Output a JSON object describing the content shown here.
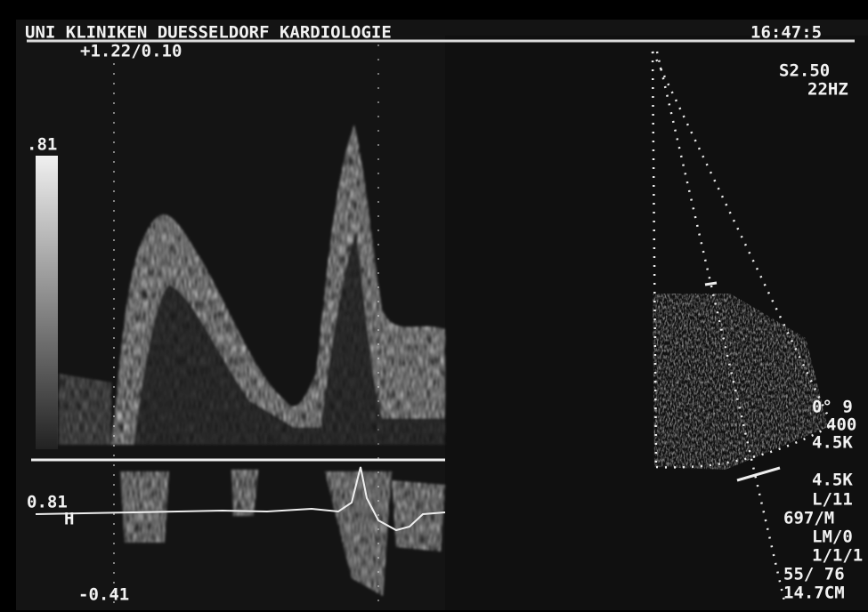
{
  "header": {
    "title": "UNI KLINIKEN DUESSELDORF KARDIOLOGIE",
    "time": "16:47:5"
  },
  "doppler": {
    "scale": "+1.22/0.10",
    "top_label": ".81",
    "ecg_label": "0.81",
    "ecg_marker": "H",
    "bottom_label": "-0.41"
  },
  "settings": {
    "depth": "S2.50",
    "frame_rate": "22HZ",
    "lines": [
      "0° 9",
      "400",
      "4.5K",
      "4.5K",
      "L/11",
      "697/M",
      "LM/0",
      "1/1/1",
      "55/ 76",
      "14.7CM"
    ]
  }
}
